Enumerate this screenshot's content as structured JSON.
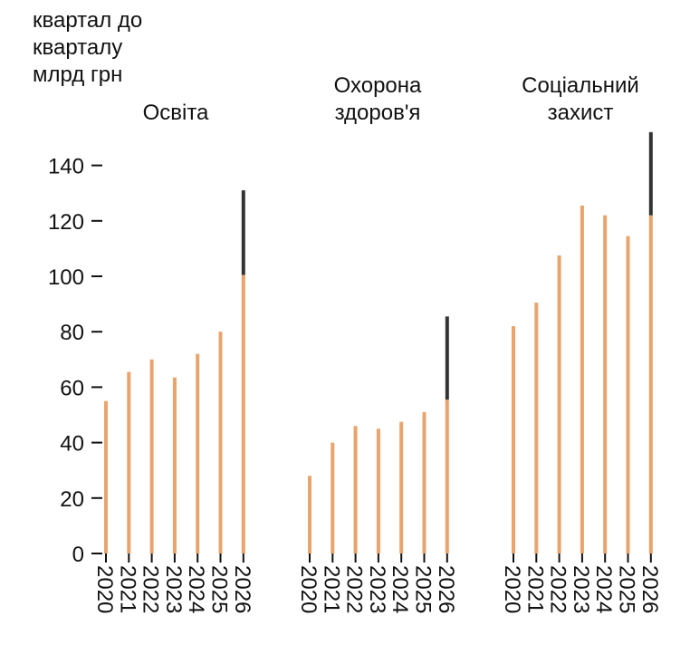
{
  "chart_data": {
    "type": "bar",
    "ylabel_lines": [
      "квартал до",
      "кварталу",
      "млрд грн"
    ],
    "ylim": [
      0,
      150
    ],
    "yticks": [
      0,
      20,
      40,
      60,
      80,
      100,
      120,
      140
    ],
    "categories": [
      "2020",
      "2021",
      "2022",
      "2023",
      "2024",
      "2025",
      "2026"
    ],
    "colors": {
      "base": "#e8a46c",
      "extra": "#333333"
    },
    "panels": [
      {
        "title_lines": [
          "Освіта"
        ],
        "values": [
          55,
          65.5,
          70,
          63.5,
          72,
          80,
          100.5
        ],
        "extra": [
          0,
          0,
          0,
          0,
          0,
          0,
          30.5
        ]
      },
      {
        "title_lines": [
          "Охорона",
          "здоров'я"
        ],
        "values": [
          28,
          40,
          46,
          45,
          47.5,
          51,
          55.5
        ],
        "extra": [
          0,
          0,
          0,
          0,
          0,
          0,
          30
        ]
      },
      {
        "title_lines": [
          "Соціальний",
          "захист"
        ],
        "values": [
          82,
          90.5,
          107.5,
          125.5,
          122,
          114.5,
          122
        ],
        "extra": [
          0,
          0,
          0,
          0,
          0,
          0,
          30
        ]
      }
    ]
  }
}
